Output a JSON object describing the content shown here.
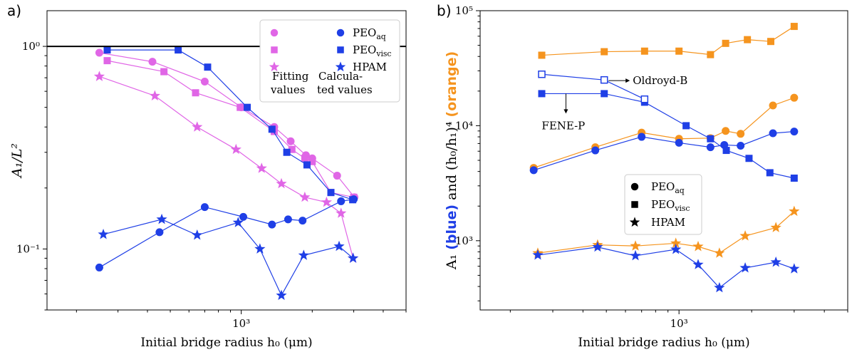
{
  "panels": [
    {
      "letter": "a)"
    },
    {
      "letter": "b)"
    }
  ],
  "chart_data": [
    {
      "type": "scatter",
      "title": "",
      "xlabel": "Initial bridge radius h₀ (μm)",
      "ylabel": "A₁/L²",
      "xscale": "log",
      "yscale": "log",
      "xlim": [
        150,
        5000
      ],
      "ylim": [
        0.05,
        1.5
      ],
      "x_ticks": [
        {
          "value": 1000,
          "label": "10³"
        }
      ],
      "y_ticks": [
        {
          "value": 0.1,
          "label": "10⁻¹"
        },
        {
          "value": 1,
          "label": "10⁰"
        }
      ],
      "reference_line": {
        "y": 1
      },
      "legend": {
        "position": "top-right",
        "column_labels": [
          "Fitting values",
          "Calculated values"
        ],
        "rows": [
          "PEO_aq",
          "PEO_visc",
          "HPAM"
        ]
      },
      "series": [
        {
          "name": "PEO_aq",
          "group": "Fitting",
          "marker": "circle",
          "color": "#e066e6",
          "x": [
            250,
            420,
            700,
            1000,
            1380,
            1620,
            1880,
            2000,
            2550,
            3020
          ],
          "y": [
            0.93,
            0.84,
            0.67,
            0.5,
            0.4,
            0.34,
            0.29,
            0.28,
            0.23,
            0.18
          ]
        },
        {
          "name": "PEO_visc",
          "group": "Fitting",
          "marker": "square",
          "color": "#e066e6",
          "x": [
            270,
            470,
            640,
            990,
            1380,
            1640,
            1860,
            2000,
            2400,
            3000
          ],
          "y": [
            0.85,
            0.75,
            0.59,
            0.5,
            0.38,
            0.31,
            0.28,
            0.27,
            0.19,
            0.18
          ]
        },
        {
          "name": "HPAM",
          "group": "Fitting",
          "marker": "star",
          "color": "#e066e6",
          "x": [
            250,
            430,
            650,
            950,
            1220,
            1480,
            1860,
            2300,
            2650,
            2980
          ],
          "y": [
            0.71,
            0.57,
            0.4,
            0.31,
            0.25,
            0.21,
            0.18,
            0.17,
            0.15,
            0.09
          ]
        },
        {
          "name": "PEO_aq",
          "group": "Calculated",
          "marker": "circle",
          "color": "#1f3fe6",
          "x": [
            250,
            450,
            700,
            1020,
            1350,
            1580,
            1820,
            2650,
            3000
          ],
          "y": [
            0.081,
            0.121,
            0.161,
            0.144,
            0.132,
            0.14,
            0.138,
            0.172,
            0.176
          ]
        },
        {
          "name": "PEO_visc",
          "group": "Calculated",
          "marker": "square",
          "color": "#1f3fe6",
          "x": [
            270,
            540,
            720,
            1060,
            1350,
            1560,
            1900,
            2400,
            2970
          ],
          "y": [
            0.96,
            0.96,
            0.79,
            0.5,
            0.39,
            0.3,
            0.26,
            0.19,
            0.175
          ]
        },
        {
          "name": "HPAM",
          "group": "Calculated",
          "marker": "star",
          "color": "#1f3fe6",
          "x": [
            260,
            460,
            650,
            970,
            1200,
            1480,
            1840,
            2600,
            2980
          ],
          "y": [
            0.118,
            0.14,
            0.117,
            0.135,
            0.1,
            0.059,
            0.093,
            0.103,
            0.09
          ]
        }
      ]
    },
    {
      "type": "scatter",
      "title": "",
      "xlabel": "Initial bridge radius h₀ (μm)",
      "ylabel_parts": [
        {
          "text": "A₁ ",
          "color": "#000000",
          "bold": false
        },
        {
          "text": "(blue)",
          "color": "#1f3fe6",
          "bold": true
        },
        {
          "text": " and (h₀/h₁)⁴ ",
          "color": "#000000",
          "bold": false
        },
        {
          "text": "(orange)",
          "color": "#f5941e",
          "bold": true
        }
      ],
      "xscale": "log",
      "yscale": "log",
      "xlim": [
        150,
        5000
      ],
      "ylim": [
        250,
        100000
      ],
      "x_ticks": [
        {
          "value": 1000,
          "label": "10³"
        }
      ],
      "y_ticks": [
        {
          "value": 1000,
          "label": "10³"
        },
        {
          "value": 10000,
          "label": "10⁴"
        },
        {
          "value": 100000,
          "label": "10⁵"
        }
      ],
      "legend": {
        "position": "lower-right",
        "rows": [
          "PEO_aq",
          "PEO_visc",
          "HPAM"
        ]
      },
      "annotations": [
        {
          "text": "Oldroyd-B",
          "arrow": "right"
        },
        {
          "text": "FENE-P",
          "arrow": "down"
        }
      ],
      "series": [
        {
          "name": "PEO_aq",
          "group": "orange",
          "marker": "circle",
          "color": "#f5941e",
          "x": [
            250,
            450,
            700,
            1000,
            1350,
            1560,
            1800,
            2450,
            3000
          ],
          "y": [
            4300,
            6500,
            8700,
            7700,
            7800,
            9000,
            8500,
            15000,
            17500
          ]
        },
        {
          "name": "PEO_visc",
          "group": "orange",
          "marker": "square",
          "color": "#f5941e",
          "x": [
            270,
            490,
            720,
            1000,
            1350,
            1560,
            1920,
            2400,
            3000
          ],
          "y": [
            41000,
            44000,
            44500,
            44500,
            41500,
            52000,
            56000,
            54000,
            73000
          ]
        },
        {
          "name": "HPAM",
          "group": "orange",
          "marker": "star",
          "color": "#f5941e",
          "x": [
            260,
            460,
            660,
            970,
            1200,
            1470,
            1880,
            2520,
            3000
          ],
          "y": [
            780,
            920,
            900,
            950,
            890,
            780,
            1100,
            1300,
            1800
          ]
        },
        {
          "name": "PEO_aq",
          "group": "blue",
          "marker": "circle",
          "color": "#1f3fe6",
          "x": [
            250,
            450,
            700,
            1000,
            1350,
            1540,
            1800,
            2450,
            3000
          ],
          "y": [
            4100,
            6100,
            8000,
            7100,
            6500,
            6800,
            6700,
            8600,
            8900
          ]
        },
        {
          "name": "PEO_visc",
          "group": "blue",
          "marker": "square",
          "color": "#1f3fe6",
          "x": [
            270,
            490,
            720,
            1070,
            1350,
            1570,
            1950,
            2380,
            3000
          ],
          "y": [
            19000,
            19000,
            16000,
            10000,
            7700,
            6100,
            5200,
            3900,
            3500
          ]
        },
        {
          "name": "PEO_visc (Oldroyd-B)",
          "group": "blue-open",
          "marker": "square-open",
          "color": "#1f3fe6",
          "x": [
            270,
            490,
            720
          ],
          "y": [
            28000,
            25000,
            17000
          ]
        },
        {
          "name": "HPAM",
          "group": "blue",
          "marker": "star",
          "color": "#1f3fe6",
          "x": [
            260,
            460,
            660,
            970,
            1200,
            1470,
            1880,
            2520,
            3000
          ],
          "y": [
            750,
            880,
            740,
            840,
            620,
            390,
            580,
            650,
            570
          ]
        }
      ]
    }
  ]
}
